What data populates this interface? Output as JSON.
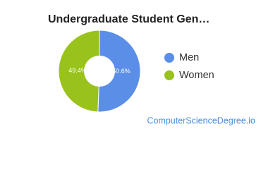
{
  "chart_data": {
    "type": "pie",
    "title": "Undergraduate Student Gen…",
    "categories": [
      "Men",
      "Women"
    ],
    "values": [
      50.6,
      49.4
    ],
    "value_labels": [
      "50.6%",
      "49.4%"
    ],
    "colors": [
      "#5b8ee6",
      "#99c31c"
    ],
    "donut": true,
    "legend": "right",
    "source": "ComputerScienceDegree.io"
  }
}
